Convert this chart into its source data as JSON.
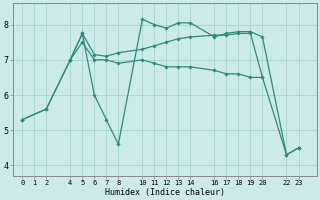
{
  "xlabel": "Humidex (Indice chaleur)",
  "bg_color": "#cceae7",
  "line_color": "#2e8b7a",
  "grid_color": "#aad4ce",
  "spine_color": "#888888",
  "xtick_positions": [
    0,
    1,
    2,
    4,
    5,
    6,
    7,
    8,
    10,
    11,
    12,
    13,
    14,
    16,
    17,
    18,
    19,
    20,
    22,
    23
  ],
  "xtick_labels": [
    "0",
    "1",
    "2",
    "4",
    "5",
    "6",
    "7",
    "8",
    "10",
    "11",
    "12",
    "13",
    "14",
    "16",
    "17",
    "18",
    "19",
    "20",
    "22",
    "23"
  ],
  "ytick_positions": [
    4,
    5,
    6,
    7,
    8
  ],
  "ytick_labels": [
    "4",
    "5",
    "6",
    "7",
    "8"
  ],
  "xlim": [
    -0.8,
    24.5
  ],
  "ylim": [
    3.7,
    8.6
  ],
  "lines": [
    {
      "x": [
        0,
        2,
        4,
        5,
        6,
        7,
        8,
        10,
        11,
        12,
        13,
        14,
        16,
        17,
        18,
        19,
        20,
        22,
        23
      ],
      "y": [
        5.3,
        5.6,
        7.0,
        7.75,
        6.0,
        5.3,
        4.6,
        8.15,
        8.0,
        7.9,
        8.05,
        8.05,
        7.65,
        7.75,
        7.8,
        7.8,
        7.65,
        4.3,
        4.5
      ]
    },
    {
      "x": [
        4,
        5,
        6,
        7,
        8,
        10,
        11,
        12,
        13,
        14,
        16,
        17,
        18,
        19,
        20,
        22,
        23
      ],
      "y": [
        7.0,
        7.5,
        7.0,
        7.0,
        6.9,
        7.0,
        6.9,
        6.8,
        6.8,
        6.8,
        6.7,
        6.6,
        6.6,
        6.5,
        6.5,
        4.3,
        4.5
      ]
    },
    {
      "x": [
        0,
        2,
        4,
        5,
        6,
        7,
        8,
        10,
        11,
        12,
        13,
        14,
        16,
        17,
        18,
        19,
        20
      ],
      "y": [
        5.3,
        5.6,
        7.0,
        7.75,
        7.15,
        7.1,
        7.2,
        7.3,
        7.4,
        7.5,
        7.6,
        7.65,
        7.7,
        7.7,
        7.75,
        7.75,
        6.5
      ]
    }
  ],
  "marker": "D",
  "markersize": 1.8,
  "linewidth": 0.9,
  "xlabel_fontsize": 6.0,
  "xtick_fontsize": 5.0,
  "ytick_fontsize": 6.0
}
